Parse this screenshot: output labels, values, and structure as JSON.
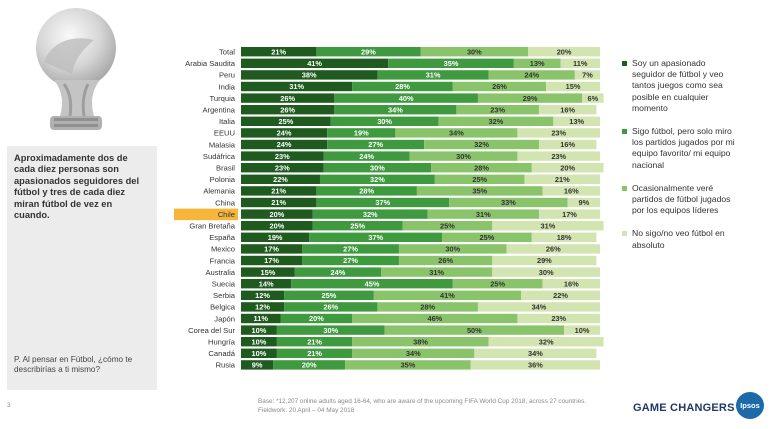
{
  "summary_text": "Aproximadamente dos de cada diez personas son apasionados seguidores del fútbol y tres de cada diez miran fútbol de vez en cuando.",
  "question_text": "P. Al pensar en Fútbol, ¿cómo te describirías a ti mismo?",
  "base_note": "Base: *12,207 online adults aged 16-64, who are aware of the upcoming FIFA World Cup 2018, across 27 countries. Fieldwork: 20 April – 04 May 2018",
  "page_number": "3",
  "footer_brand": "GAME CHANGERS",
  "logo_text": "Ipsos",
  "colors": {
    "highlight": "#f5b63b",
    "sidebox": "#ececec",
    "brand_blue": "#1f3864",
    "logo_blue": "#1c6aa8"
  },
  "chart_data": {
    "type": "bar",
    "orientation": "horizontal",
    "stacked": true,
    "percent_stacked": true,
    "highlighted_category": "Chile",
    "categories": [
      "Total",
      "Arabia Saudita",
      "Peru",
      "India",
      "Turquia",
      "Argentina",
      "Italia",
      "EEUU",
      "Malasia",
      "Sudáfrica",
      "Brasil",
      "Polonia",
      "Alemania",
      "China",
      "Chile",
      "Gran Bretaña",
      "España",
      "Mexico",
      "Francia",
      "Australia",
      "Suecia",
      "Serbia",
      "Belgica",
      "Japón",
      "Corea del Sur",
      "Hungría",
      "Canadá",
      "Rusia"
    ],
    "series": [
      {
        "name": "Soy un apasionado seguidor de fútbol y veo tantos juegos como sea posible en cualquier momento",
        "color": "#1f5b1f",
        "values": [
          21,
          41,
          38,
          31,
          26,
          26,
          25,
          24,
          24,
          23,
          23,
          22,
          21,
          21,
          20,
          20,
          19,
          17,
          17,
          15,
          14,
          12,
          12,
          11,
          10,
          10,
          10,
          9
        ]
      },
      {
        "name": "Sigo fútbol, pero solo miro los partidos jugados por mi equipo favorito/ mi equipo nacional",
        "color": "#3f9a3f",
        "values": [
          29,
          35,
          31,
          28,
          40,
          34,
          30,
          19,
          27,
          24,
          30,
          32,
          28,
          37,
          32,
          25,
          37,
          27,
          27,
          24,
          45,
          25,
          26,
          20,
          30,
          21,
          21,
          20
        ]
      },
      {
        "name": "Ocasionalmente veré partidos de fútbol jugados por los equipos líderes",
        "color": "#8ac46a",
        "values": [
          30,
          13,
          24,
          26,
          29,
          23,
          32,
          34,
          32,
          30,
          28,
          25,
          35,
          33,
          31,
          25,
          25,
          30,
          26,
          31,
          25,
          41,
          28,
          46,
          50,
          38,
          34,
          35
        ]
      },
      {
        "name": "No sigo/no veo fútbol en absoluto",
        "color": "#d2e5b0",
        "values": [
          20,
          11,
          7,
          15,
          6,
          16,
          13,
          23,
          16,
          23,
          20,
          21,
          16,
          9,
          17,
          31,
          18,
          26,
          29,
          30,
          16,
          22,
          34,
          23,
          10,
          32,
          34,
          36
        ]
      }
    ]
  }
}
